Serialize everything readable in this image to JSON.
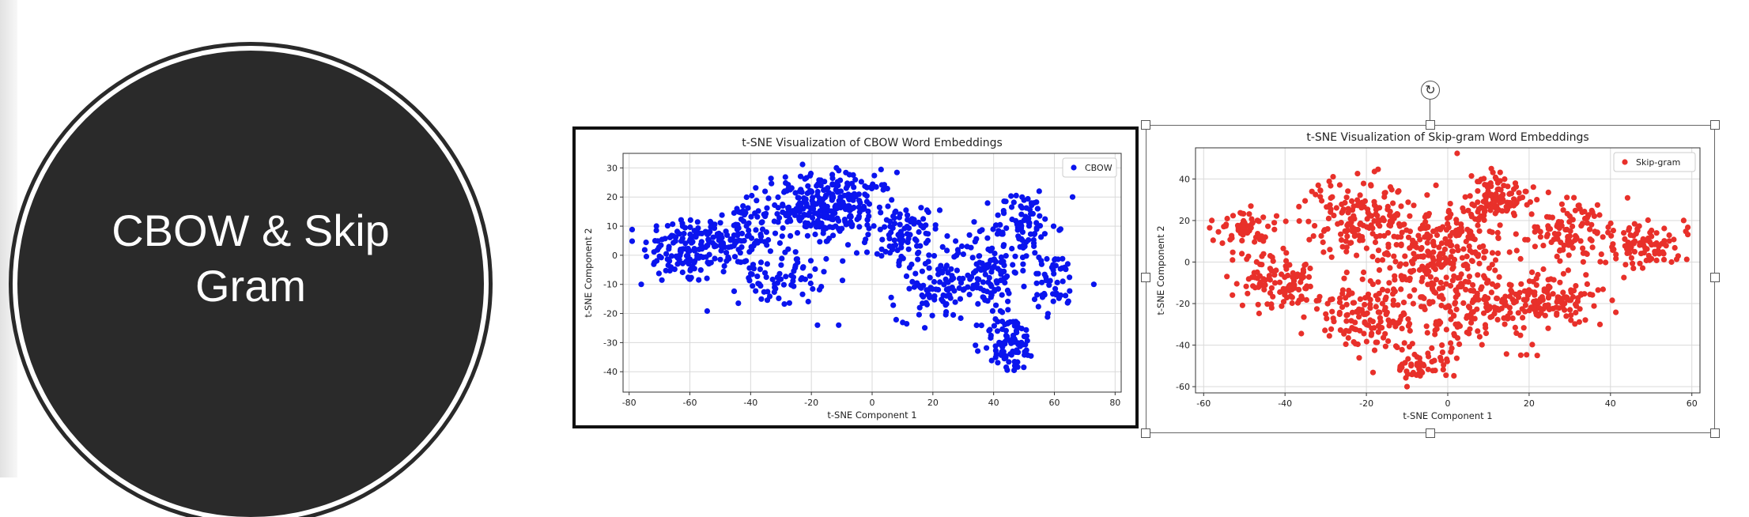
{
  "slide": {
    "title": "CBOW & Skip Gram"
  },
  "chart_data": [
    {
      "id": "cbow",
      "type": "scatter",
      "title": "t-SNE Visualization of CBOW Word Embeddings",
      "xlabel": "t-SNE Component 1",
      "ylabel": "t-SNE Component 2",
      "xlim": [
        -82,
        82
      ],
      "ylim": [
        -47,
        35
      ],
      "xticks": [
        -80,
        -60,
        -40,
        -20,
        0,
        20,
        40,
        60,
        80
      ],
      "yticks": [
        30,
        20,
        10,
        0,
        -10,
        -20,
        -30,
        -40
      ],
      "grid": true,
      "legend_position": "top-right",
      "color": "#0a14ee",
      "series": [
        {
          "name": "CBOW",
          "clusters": [
            {
              "cx": -62,
              "cy": 2,
              "sx": 9,
              "sy": 8,
              "n": 130
            },
            {
              "cx": -45,
              "cy": 6,
              "sx": 8,
              "sy": 8,
              "n": 110
            },
            {
              "cx": -22,
              "cy": 16,
              "sx": 10,
              "sy": 8,
              "n": 170
            },
            {
              "cx": -8,
              "cy": 18,
              "sx": 10,
              "sy": 7,
              "n": 130
            },
            {
              "cx": -30,
              "cy": -8,
              "sx": 9,
              "sy": 6,
              "n": 70
            },
            {
              "cx": 10,
              "cy": 6,
              "sx": 8,
              "sy": 8,
              "n": 100
            },
            {
              "cx": 22,
              "cy": -12,
              "sx": 9,
              "sy": 7,
              "n": 90
            },
            {
              "cx": 38,
              "cy": -5,
              "sx": 7,
              "sy": 9,
              "n": 100
            },
            {
              "cx": 50,
              "cy": 10,
              "sx": 7,
              "sy": 8,
              "n": 90
            },
            {
              "cx": 45,
              "cy": -30,
              "sx": 6,
              "sy": 7,
              "n": 90
            },
            {
              "cx": 60,
              "cy": -10,
              "sx": 5,
              "sy": 7,
              "n": 50
            }
          ],
          "outliers": [
            [
              73,
              -10
            ],
            [
              -11,
              -24
            ],
            [
              -18,
              -24
            ],
            [
              -76,
              -10
            ],
            [
              66,
              20
            ],
            [
              55,
              22
            ]
          ]
        }
      ]
    },
    {
      "id": "skipgram",
      "type": "scatter",
      "title": "t-SNE Visualization of Skip-gram Word Embeddings",
      "xlabel": "t-SNE Component 1",
      "ylabel": "t-SNE Component 2",
      "xlim": [
        -62,
        62
      ],
      "ylim": [
        -63,
        55
      ],
      "xticks": [
        -60,
        -40,
        -20,
        0,
        20,
        40,
        60
      ],
      "yticks": [
        40,
        20,
        0,
        -20,
        -40,
        -60
      ],
      "grid": true,
      "legend_position": "top-right",
      "color": "#e8302a",
      "series": [
        {
          "name": "Skip-gram",
          "clusters": [
            {
              "cx": -50,
              "cy": 18,
              "sx": 5,
              "sy": 8,
              "n": 60
            },
            {
              "cx": -42,
              "cy": -10,
              "sx": 7,
              "sy": 9,
              "n": 110
            },
            {
              "cx": -22,
              "cy": 22,
              "sx": 9,
              "sy": 12,
              "n": 160
            },
            {
              "cx": -18,
              "cy": -25,
              "sx": 9,
              "sy": 12,
              "n": 160
            },
            {
              "cx": -2,
              "cy": 5,
              "sx": 10,
              "sy": 16,
              "n": 260
            },
            {
              "cx": 12,
              "cy": 32,
              "sx": 6,
              "sy": 9,
              "n": 110
            },
            {
              "cx": 8,
              "cy": -22,
              "sx": 9,
              "sy": 12,
              "n": 130
            },
            {
              "cx": 25,
              "cy": -18,
              "sx": 9,
              "sy": 8,
              "n": 140
            },
            {
              "cx": 30,
              "cy": 15,
              "sx": 8,
              "sy": 10,
              "n": 110
            },
            {
              "cx": 48,
              "cy": 8,
              "sx": 7,
              "sy": 7,
              "n": 90
            },
            {
              "cx": -6,
              "cy": -50,
              "sx": 6,
              "sy": 5,
              "n": 50
            }
          ],
          "outliers": [
            [
              -58,
              20
            ],
            [
              58,
              20
            ],
            [
              -10,
              -60
            ],
            [
              22,
              -45
            ],
            [
              55,
              0
            ]
          ]
        }
      ]
    }
  ]
}
